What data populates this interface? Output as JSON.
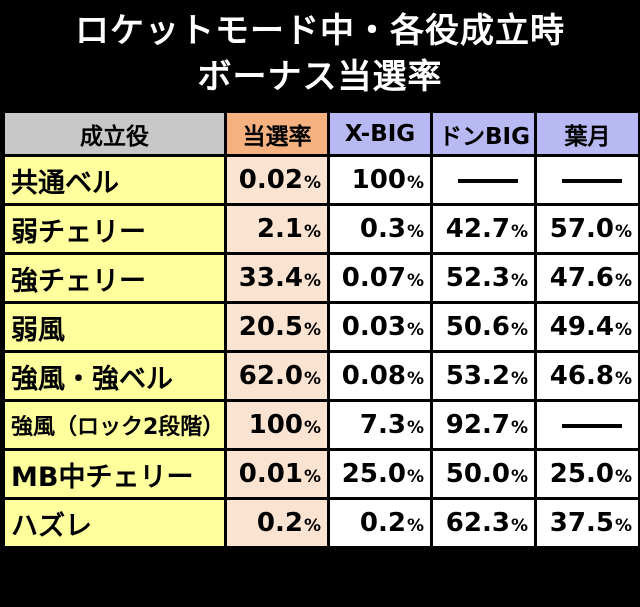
{
  "title": {
    "line1": "ロケットモード中・各役成立時",
    "line2": "ボーナス当選率"
  },
  "header": [
    "成立役",
    "当選率",
    "X-BIG",
    "ドンBIG",
    "葉月"
  ],
  "rows": [
    {
      "role": "共通ベル",
      "rate": "0.02",
      "xbig": "100",
      "donbig": "—",
      "hazuki": "—"
    },
    {
      "role": "弱チェリー",
      "rate": "2.1",
      "xbig": "0.3",
      "donbig": "42.7",
      "hazuki": "57.0"
    },
    {
      "role": "強チェリー",
      "rate": "33.4",
      "xbig": "0.07",
      "donbig": "52.3",
      "hazuki": "47.6"
    },
    {
      "role": "弱風",
      "rate": "20.5",
      "xbig": "0.03",
      "donbig": "50.6",
      "hazuki": "49.4"
    },
    {
      "role": "強風・強ベル",
      "rate": "62.0",
      "xbig": "0.08",
      "donbig": "53.2",
      "hazuki": "46.8"
    },
    {
      "role": "強風（ロック2段階）",
      "rate": "100",
      "xbig": "7.3",
      "donbig": "92.7",
      "hazuki": "—"
    },
    {
      "role": "MB中チェリー",
      "rate": "0.01",
      "xbig": "25.0",
      "donbig": "50.0",
      "hazuki": "25.0"
    },
    {
      "role": "ハズレ",
      "rate": "0.2",
      "xbig": "0.2",
      "donbig": "62.3",
      "hazuki": "37.5"
    }
  ],
  "unit": "%",
  "dash_symbol": "—",
  "colors": {
    "header_role": "#c8c8c8",
    "header_rate": "#f5b280",
    "header_bonus": "#b8b8f2",
    "role_cell": "#ffff9e",
    "rate_cell": "#fbe3d2",
    "value_cell": "#ffffff",
    "background": "#000000"
  }
}
